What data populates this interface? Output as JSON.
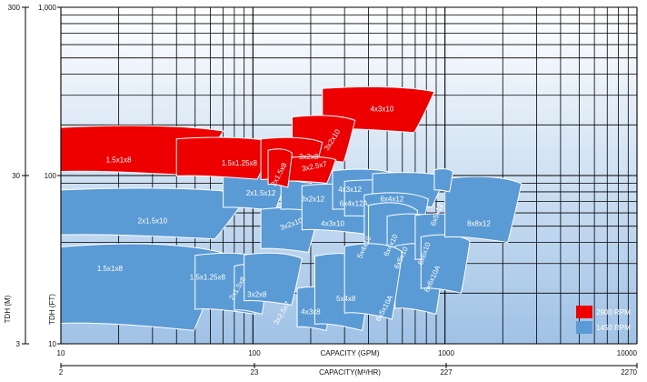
{
  "chart_data": {
    "type": "area",
    "x_scale": "log",
    "y_scale": "log",
    "grid": true,
    "legend_position": "bottom-right",
    "xlabel_gpm": "CAPACITY (GPM)",
    "xlabel_m3hr": "CAPACITY(M³/HR)",
    "ylabel_ft": "TDH (FT)",
    "ylabel_m": "TDH (M)",
    "xlim_gpm": [
      10,
      3000
    ],
    "ylim_ft": [
      10,
      1000
    ],
    "x_ticks_gpm": [
      "10",
      "100",
      "1000",
      "10000"
    ],
    "x_ticks_m3hr": [
      "2",
      "23",
      "227",
      "2270"
    ],
    "y_ticks_ft": [
      "10",
      "100",
      "1,000"
    ],
    "y_ticks_m": [
      "3",
      "30",
      "300"
    ],
    "colors": {
      "rpm2900": "#ee0000",
      "rpm1450": "#5b9bd5",
      "outline": "#ffffff",
      "grid": "#000000"
    },
    "legend": [
      {
        "label": "2900 RPM",
        "color": "#ee0000"
      },
      {
        "label": "1450 RPM",
        "color": "#5b9bd5"
      }
    ],
    "series": [
      {
        "name": "2900 RPM",
        "curves": [
          {
            "label": "4x3x10",
            "q": [
              230,
              880
            ],
            "h": [
              180,
              340
            ]
          },
          {
            "label": "3x2x10",
            "q": [
              160,
              340
            ],
            "h": [
              120,
              230
            ]
          },
          {
            "label": "1.5x1x8",
            "q": [
              10,
              70
            ],
            "h": [
              100,
              200
            ]
          },
          {
            "label": "1.5x1.25x8",
            "q": [
              40,
              130
            ],
            "h": [
              95,
              170
            ]
          },
          {
            "label": "3x2x8",
            "q": [
              110,
              230
            ],
            "h": [
              90,
              170
            ]
          },
          {
            "label": "3x2.5x7",
            "q": [
              150,
              270
            ],
            "h": [
              90,
              130
            ]
          },
          {
            "label": "2x1.5x8",
            "q": [
              120,
              160
            ],
            "h": [
              85,
              145
            ]
          }
        ]
      },
      {
        "name": "1450 RPM",
        "curves": [
          {
            "label": "1.5x1x8",
            "q": [
              10,
              70
            ],
            "h": [
              12,
              40
            ]
          },
          {
            "label": "2x1.5x10",
            "q": [
              10,
              95
            ],
            "h": [
              42,
              85
            ]
          },
          {
            "label": "2x1.5x12",
            "q": [
              70,
              150
            ],
            "h": [
              62,
              105
            ]
          },
          {
            "label": "1.5x1.25x8",
            "q": [
              50,
              120
            ],
            "h": [
              15,
              35
            ]
          },
          {
            "label": "2x1.5x8",
            "q": [
              80,
              120
            ],
            "h": [
              15,
              30
            ]
          },
          {
            "label": "3x2x8",
            "q": [
              90,
              180
            ],
            "h": [
              17,
              35
            ]
          },
          {
            "label": "3x2x10",
            "q": [
              110,
              220
            ],
            "h": [
              35,
              65
            ]
          },
          {
            "label": "3x2x12",
            "q": [
              140,
              280
            ],
            "h": [
              60,
              110
            ]
          },
          {
            "label": "4x3x10",
            "q": [
              180,
              450
            ],
            "h": [
              45,
              90
            ]
          },
          {
            "label": "4x3x12",
            "q": [
              260,
              560
            ],
            "h": [
              60,
              110
            ]
          },
          {
            "label": "6x4x12A",
            "q": [
              300,
              700
            ],
            "h": [
              55,
              95
            ]
          },
          {
            "label": "6x4x12",
            "q": [
              420,
              1000
            ],
            "h": [
              65,
              105
            ]
          },
          {
            "label": "6x4x10",
            "q": [
              380,
              820
            ],
            "h": [
              35,
              80
            ]
          },
          {
            "label": "5x4x10",
            "q": [
              400,
              720
            ],
            "h": [
              25,
              70
            ]
          },
          {
            "label": "6x5x10",
            "q": [
              500,
              950
            ],
            "h": [
              25,
              60
            ]
          },
          {
            "label": "6x5x10A",
            "q": [
              550,
              1000
            ],
            "h": [
              15,
              40
            ]
          },
          {
            "label": "6x6x10",
            "q": [
              700,
              1250
            ],
            "h": [
              30,
              60
            ]
          },
          {
            "label": "6x6x10A",
            "q": [
              750,
              1350
            ],
            "h": [
              20,
              45
            ]
          },
          {
            "label": "8x8x12",
            "q": [
              1000,
              2500
            ],
            "h": [
              40,
              100
            ]
          },
          {
            "label": "3x2.5x7",
            "q": [
              170,
              260
            ],
            "h": [
              12,
              22
            ]
          },
          {
            "label": "4x3x8",
            "q": [
              210,
              420
            ],
            "h": [
              12,
              35
            ]
          },
          {
            "label": "5x4x8",
            "q": [
              300,
              600
            ],
            "h": [
              14,
              40
            ]
          },
          {
            "label": "6x5x12",
            "q": [
              880,
              1100
            ],
            "h": [
              80,
              110
            ]
          }
        ]
      }
    ]
  },
  "labels": {
    "2900": [
      {
        "t": "4x3x10",
        "q": 470,
        "h": 240,
        "rot": 0
      },
      {
        "t": "3x2x10",
        "q": 265,
        "h": 160,
        "rot": -58
      },
      {
        "t": "1.5x1x8",
        "q": 20,
        "h": 120,
        "rot": 0
      },
      {
        "t": "1.5x1.25x8",
        "q": 85,
        "h": 115,
        "rot": 0
      },
      {
        "t": "3x2x8",
        "q": 195,
        "h": 125,
        "rot": 0
      },
      {
        "t": "3x2.5x7",
        "q": 210,
        "h": 110,
        "rot": -12
      },
      {
        "t": "2x1.5x8",
        "q": 140,
        "h": 100,
        "rot": -62
      }
    ],
    "1450": [
      {
        "t": "2x1.5x12",
        "q": 110,
        "h": 76,
        "rot": 0
      },
      {
        "t": "4x3x12",
        "q": 320,
        "h": 80,
        "rot": 0
      },
      {
        "t": "3x2x12",
        "q": 205,
        "h": 70,
        "rot": 0
      },
      {
        "t": "6x4x12A",
        "q": 335,
        "h": 66,
        "rot": 0
      },
      {
        "t": "6x4x12",
        "q": 530,
        "h": 70,
        "rot": 0
      },
      {
        "t": "6x5x12",
        "q": 930,
        "h": 58,
        "rot": -70
      },
      {
        "t": "2x1.5x10",
        "q": 30,
        "h": 52,
        "rot": 0
      },
      {
        "t": "3x2x10",
        "q": 160,
        "h": 50,
        "rot": -20
      },
      {
        "t": "4x3x10",
        "q": 260,
        "h": 50,
        "rot": 0
      },
      {
        "t": "8x8x12",
        "q": 1500,
        "h": 50,
        "rot": 0
      },
      {
        "t": "6x4x10",
        "q": 535,
        "h": 38,
        "rot": -65
      },
      {
        "t": "5x4x10",
        "q": 390,
        "h": 37,
        "rot": -65
      },
      {
        "t": "6x6x10",
        "q": 800,
        "h": 34,
        "rot": -70
      },
      {
        "t": "6x5x10",
        "q": 605,
        "h": 32,
        "rot": -65
      },
      {
        "t": "6x6x10A",
        "q": 880,
        "h": 24,
        "rot": -65
      },
      {
        "t": "1.5x1x8",
        "q": 18,
        "h": 27,
        "rot": 0
      },
      {
        "t": "1.5x1.25x8",
        "q": 58,
        "h": 24,
        "rot": 0
      },
      {
        "t": "2x1.5x8",
        "q": 85,
        "h": 21,
        "rot": -60
      },
      {
        "t": "3x2x8",
        "q": 105,
        "h": 19,
        "rot": 0
      },
      {
        "t": "3x2.5x7",
        "q": 145,
        "h": 15,
        "rot": -60
      },
      {
        "t": "4x3x8",
        "q": 200,
        "h": 15,
        "rot": 0
      },
      {
        "t": "5x4x8",
        "q": 305,
        "h": 18,
        "rot": 0
      },
      {
        "t": "6x5x10A",
        "q": 495,
        "h": 16,
        "rot": -62
      }
    ]
  }
}
